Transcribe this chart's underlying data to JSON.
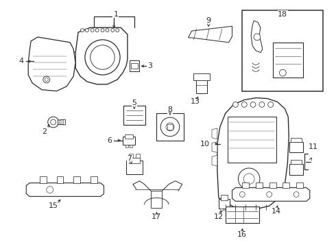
{
  "background_color": "#ffffff",
  "line_color": "#2a2a2a",
  "lw": 0.9,
  "figsize": [
    4.9,
    3.6
  ],
  "dpi": 100
}
